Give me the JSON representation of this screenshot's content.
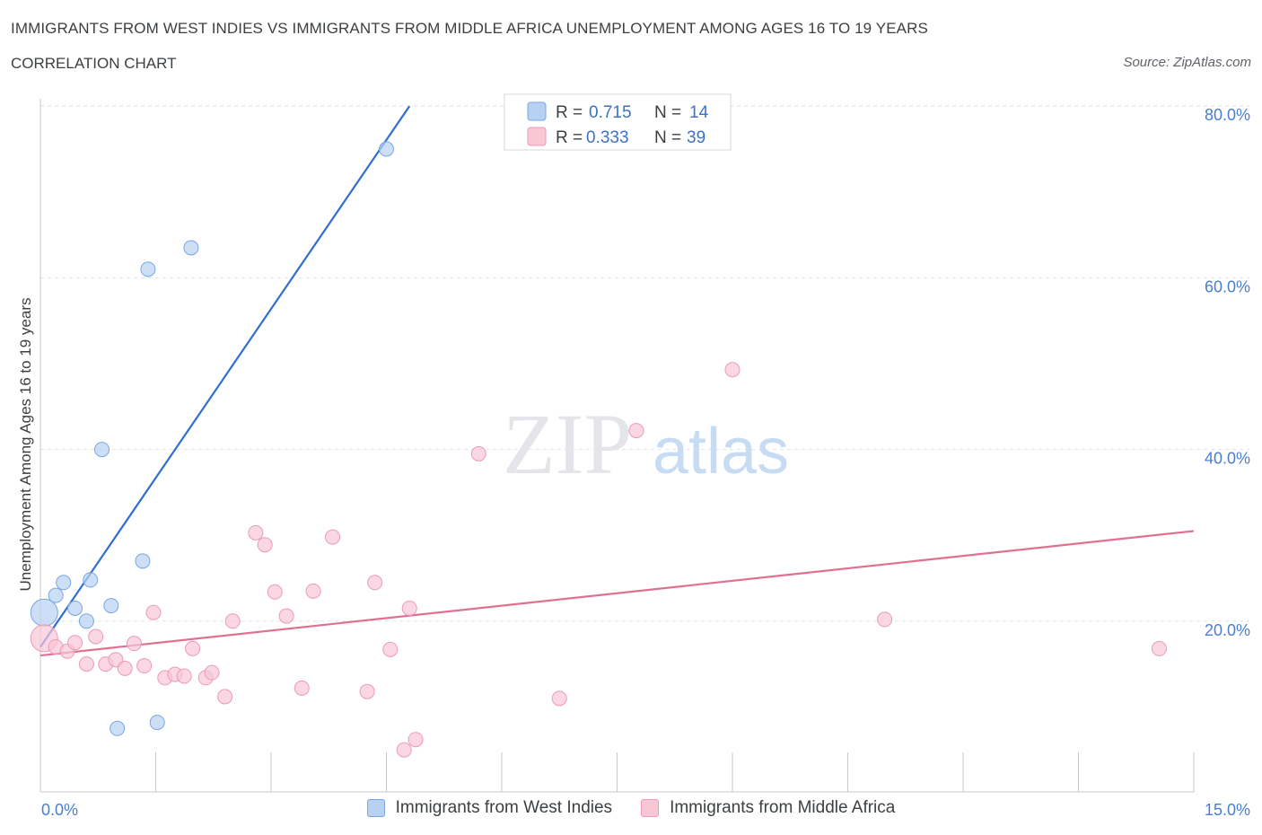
{
  "title": "IMMIGRANTS FROM WEST INDIES VS IMMIGRANTS FROM MIDDLE AFRICA UNEMPLOYMENT AMONG AGES 16 TO 19 YEARS",
  "subtitle": "CORRELATION CHART",
  "source": "Source: ZipAtlas.com",
  "watermark": {
    "zip": "ZIP",
    "atlas": "atlas"
  },
  "colors": {
    "blue_fill": "#b7d1f2",
    "blue_stroke": "#7aa6e0",
    "blue_line": "#2f6fcf",
    "pink_fill": "#f8c6d5",
    "pink_stroke": "#ec9ab5",
    "pink_line": "#e0708f",
    "grid": "#dfe3e8",
    "tick_text": "#4a7fd0"
  },
  "legend": {
    "r_label": "R =",
    "n_label": "N =",
    "rows": [
      {
        "r": "0.715",
        "n": "14"
      },
      {
        "r": "0.333",
        "n": "39"
      }
    ]
  },
  "chart_data": {
    "type": "scatter",
    "title": "IMMIGRANTS FROM WEST INDIES VS IMMIGRANTS FROM MIDDLE AFRICA UNEMPLOYMENT AMONG AGES 16 TO 19 YEARS",
    "xlabel": "",
    "ylabel": "Unemployment Among Ages 16 to 19 years",
    "xlim": [
      0,
      15
    ],
    "ylim": [
      0,
      80
    ],
    "x_tick_labels": [
      {
        "value": 0,
        "label": "0.0%"
      },
      {
        "value": 15,
        "label": "15.0%"
      }
    ],
    "x_minor_ticks": [
      0,
      1.5,
      3,
      4.5,
      6,
      7.5,
      9,
      10.5,
      12,
      13.5,
      15
    ],
    "y_ticks": [
      {
        "value": 20,
        "label": "20.0%"
      },
      {
        "value": 40,
        "label": "40.0%"
      },
      {
        "value": 60,
        "label": "60.0%"
      },
      {
        "value": 80,
        "label": "80.0%"
      }
    ],
    "series": [
      {
        "name": "Immigrants from West Indies",
        "color": "blue",
        "points": [
          {
            "x": 0.05,
            "y": 21.0,
            "big": true
          },
          {
            "x": 0.2,
            "y": 23.0
          },
          {
            "x": 0.3,
            "y": 24.5
          },
          {
            "x": 0.45,
            "y": 21.5
          },
          {
            "x": 0.6,
            "y": 20.0
          },
          {
            "x": 0.65,
            "y": 24.8
          },
          {
            "x": 0.8,
            "y": 40.0
          },
          {
            "x": 0.92,
            "y": 21.8
          },
          {
            "x": 1.0,
            "y": 7.5
          },
          {
            "x": 1.33,
            "y": 27.0
          },
          {
            "x": 1.4,
            "y": 61.0
          },
          {
            "x": 1.52,
            "y": 8.2
          },
          {
            "x": 1.96,
            "y": 63.5
          },
          {
            "x": 4.5,
            "y": 75.0
          }
        ],
        "trend": {
          "x1": 0.0,
          "y1": 17.0,
          "x2": 4.8,
          "y2": 80.0
        }
      },
      {
        "name": "Immigrants from Middle Africa",
        "color": "pink",
        "points": [
          {
            "x": 0.05,
            "y": 18.0,
            "big": true
          },
          {
            "x": 0.2,
            "y": 17.0
          },
          {
            "x": 0.35,
            "y": 16.5
          },
          {
            "x": 0.45,
            "y": 17.5
          },
          {
            "x": 0.6,
            "y": 15.0
          },
          {
            "x": 0.72,
            "y": 18.2
          },
          {
            "x": 0.85,
            "y": 15.0
          },
          {
            "x": 0.98,
            "y": 15.5
          },
          {
            "x": 1.1,
            "y": 14.5
          },
          {
            "x": 1.22,
            "y": 17.4
          },
          {
            "x": 1.35,
            "y": 14.8
          },
          {
            "x": 1.47,
            "y": 21.0
          },
          {
            "x": 1.62,
            "y": 13.4
          },
          {
            "x": 1.75,
            "y": 13.8
          },
          {
            "x": 1.87,
            "y": 13.6
          },
          {
            "x": 1.98,
            "y": 16.8
          },
          {
            "x": 2.15,
            "y": 13.4
          },
          {
            "x": 2.23,
            "y": 14.0
          },
          {
            "x": 2.4,
            "y": 11.2
          },
          {
            "x": 2.5,
            "y": 20.0
          },
          {
            "x": 2.8,
            "y": 30.3
          },
          {
            "x": 2.92,
            "y": 28.9
          },
          {
            "x": 3.05,
            "y": 23.4
          },
          {
            "x": 3.2,
            "y": 20.6
          },
          {
            "x": 3.4,
            "y": 12.2
          },
          {
            "x": 3.55,
            "y": 23.5
          },
          {
            "x": 3.8,
            "y": 29.8
          },
          {
            "x": 4.25,
            "y": 11.8
          },
          {
            "x": 4.35,
            "y": 24.5
          },
          {
            "x": 4.55,
            "y": 16.7
          },
          {
            "x": 4.73,
            "y": 5.0
          },
          {
            "x": 4.8,
            "y": 21.5
          },
          {
            "x": 4.88,
            "y": 6.2
          },
          {
            "x": 5.7,
            "y": 39.5
          },
          {
            "x": 6.75,
            "y": 11.0
          },
          {
            "x": 7.75,
            "y": 42.2
          },
          {
            "x": 9.0,
            "y": 49.3
          },
          {
            "x": 10.98,
            "y": 20.2
          },
          {
            "x": 14.55,
            "y": 16.8
          }
        ],
        "trend": {
          "x1": 0.0,
          "y1": 16.0,
          "x2": 15.0,
          "y2": 30.5
        }
      }
    ]
  }
}
